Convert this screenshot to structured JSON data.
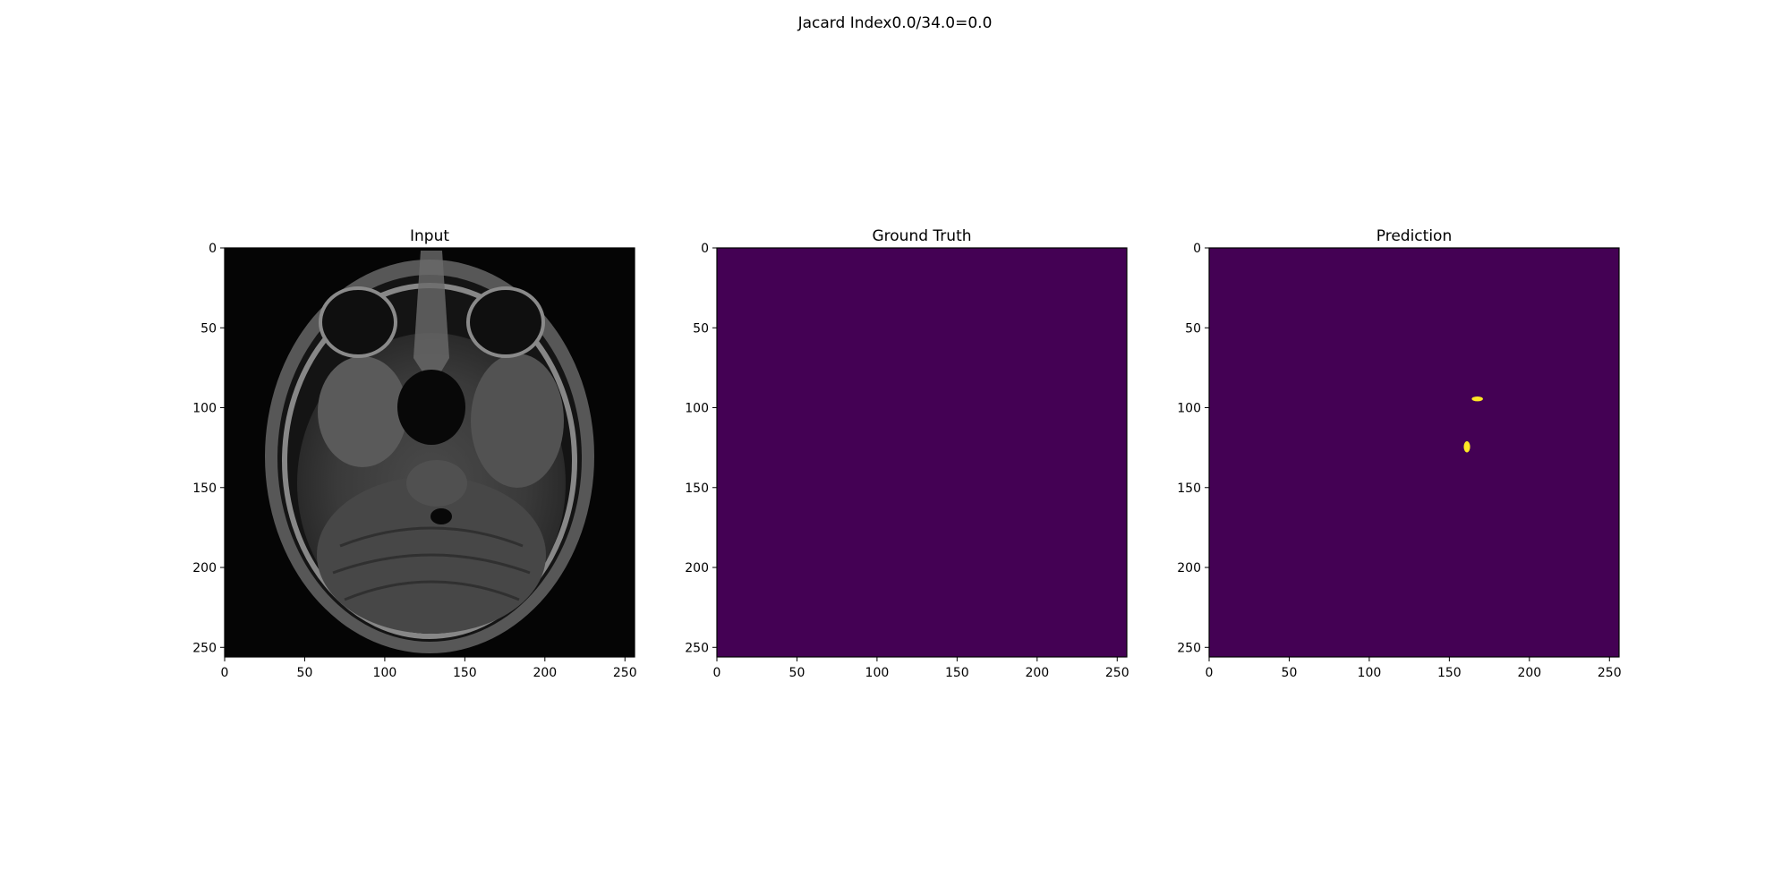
{
  "figure": {
    "suptitle": "Jacard Index0.0/34.0=0.0"
  },
  "chart_data": [
    {
      "type": "heatmap",
      "title": "Input",
      "xlabel": "",
      "ylabel": "",
      "xlim": [
        0,
        256
      ],
      "ylim": [
        256,
        0
      ],
      "xticks": [
        0,
        50,
        100,
        150,
        200,
        250
      ],
      "yticks": [
        0,
        50,
        100,
        150,
        200,
        250
      ],
      "colormap": "gray",
      "background_color": "#050505",
      "content": "axial brain MRI slice"
    },
    {
      "type": "heatmap",
      "title": "Ground Truth",
      "xlabel": "",
      "ylabel": "",
      "xlim": [
        0,
        256
      ],
      "ylim": [
        256,
        0
      ],
      "xticks": [
        0,
        50,
        100,
        150,
        200,
        250
      ],
      "yticks": [
        0,
        50,
        100,
        150,
        200,
        250
      ],
      "colormap": "viridis",
      "background_color": "#440154",
      "regions": []
    },
    {
      "type": "heatmap",
      "title": "Prediction",
      "xlabel": "",
      "ylabel": "",
      "xlim": [
        0,
        256
      ],
      "ylim": [
        256,
        0
      ],
      "xticks": [
        0,
        50,
        100,
        150,
        200,
        250
      ],
      "yticks": [
        0,
        50,
        100,
        150,
        200,
        250
      ],
      "colormap": "viridis",
      "background_color": "#440154",
      "foreground_color": "#fde725",
      "regions": [
        {
          "x": [
            164,
            171
          ],
          "y": [
            93,
            96
          ]
        },
        {
          "x": [
            159,
            163
          ],
          "y": [
            121,
            128
          ]
        }
      ]
    }
  ]
}
